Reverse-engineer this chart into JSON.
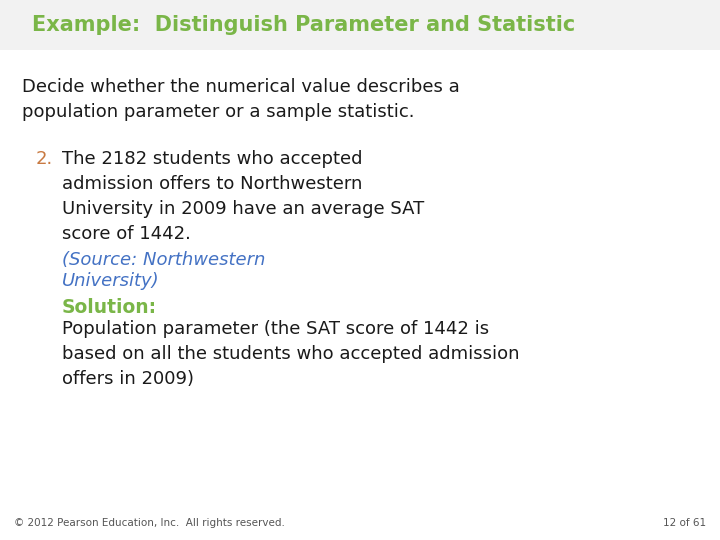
{
  "title": "Example:  Distinguish Parameter and Statistic",
  "title_color": "#7ab648",
  "title_fontsize": 15,
  "bg_color": "#ffffff",
  "intro_text": "Decide whether the numerical value describes a\npopulation parameter or a sample statistic.",
  "intro_color": "#1a1a1a",
  "intro_fontsize": 13,
  "number_text": "2.",
  "number_color": "#c87941",
  "number_fontsize": 13,
  "item_text": "The 2182 students who accepted\nadmission offers to Northwestern\nUniversity in 2009 have an average SAT\nscore of 1442.",
  "item_color": "#1a1a1a",
  "item_fontsize": 13,
  "source_line1": "(Source: Northwestern",
  "source_line2": "University)",
  "source_color": "#4472c4",
  "source_fontsize": 13,
  "solution_label": "Solution:",
  "solution_label_color": "#7ab648",
  "solution_label_fontsize": 13.5,
  "solution_text": "Population parameter (the SAT score of 1442 is\nbased on all the students who accepted admission\noffers in 2009)",
  "solution_color": "#1a1a1a",
  "solution_fontsize": 13,
  "footer_text": "© 2012 Pearson Education, Inc.  All rights reserved.",
  "footer_color": "#555555",
  "footer_fontsize": 7.5,
  "page_text": "12 of 61",
  "page_color": "#555555",
  "page_fontsize": 7.5,
  "title_bar_color": "#f2f2f2"
}
